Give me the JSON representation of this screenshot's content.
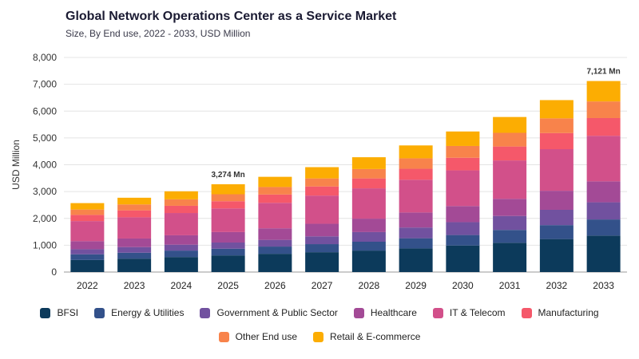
{
  "title": "Global Network Operations Center as a Service Market",
  "subtitle": "Size, By End use, 2022 - 2033, USD Million",
  "chart_data": {
    "type": "bar",
    "stacked": true,
    "title": "Global Network Operations Center as a Service Market",
    "subtitle": "Size, By End use, 2022 - 2033, USD Million",
    "xlabel": "",
    "ylabel": "USD Million",
    "ylim": [
      0,
      8000
    ],
    "yticks": [
      0,
      1000,
      2000,
      3000,
      4000,
      5000,
      6000,
      7000,
      8000
    ],
    "ytick_labels": [
      "0",
      "1,000",
      "2,000",
      "3,000",
      "4,000",
      "5,000",
      "6,000",
      "7,000",
      "8,000"
    ],
    "grid": true,
    "legend_position": "bottom",
    "categories": [
      "2022",
      "2023",
      "2024",
      "2025",
      "2026",
      "2027",
      "2028",
      "2029",
      "2030",
      "2031",
      "2032",
      "2033"
    ],
    "series": [
      {
        "name": "BFSI",
        "color": "#0c3a5b",
        "values": [
          450,
          500,
          560,
          620,
          680,
          740,
          800,
          880,
          990,
          1090,
          1230,
          1360
        ]
      },
      {
        "name": "Energy & Utilities",
        "color": "#33518a",
        "values": [
          210,
          220,
          240,
          250,
          270,
          300,
          330,
          380,
          390,
          480,
          520,
          600
        ]
      },
      {
        "name": "Government & Public Sector",
        "color": "#71519f",
        "values": [
          190,
          210,
          220,
          230,
          250,
          290,
          360,
          400,
          480,
          520,
          570,
          640
        ]
      },
      {
        "name": "Healthcare",
        "color": "#a34a96",
        "values": [
          300,
          320,
          350,
          390,
          430,
          470,
          500,
          560,
          600,
          640,
          710,
          780
        ]
      },
      {
        "name": "IT & Telecom",
        "color": "#d2508a",
        "values": [
          750,
          790,
          830,
          880,
          950,
          1050,
          1130,
          1220,
          1330,
          1430,
          1550,
          1700
        ]
      },
      {
        "name": "Manufacturing",
        "color": "#f5586a",
        "values": [
          230,
          260,
          270,
          270,
          310,
          340,
          370,
          410,
          470,
          520,
          600,
          660
        ]
      },
      {
        "name": "Other End use",
        "color": "#f8834b",
        "values": [
          200,
          220,
          240,
          260,
          280,
          300,
          350,
          390,
          440,
          510,
          550,
          620
        ]
      },
      {
        "name": "Retail & E-commerce",
        "color": "#fcad02",
        "values": [
          240,
          250,
          300,
          374,
          380,
          420,
          440,
          480,
          540,
          590,
          680,
          761
        ]
      }
    ],
    "annotations": [
      {
        "category": "2025",
        "text": "3,274 Mn"
      },
      {
        "category": "2033",
        "text": "7,121 Mn"
      }
    ]
  }
}
